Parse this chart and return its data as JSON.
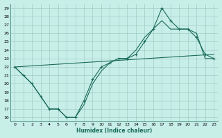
{
  "xlabel": "Humidex (Indice chaleur)",
  "bg_color": "#c8eee8",
  "grid_color": "#a0ccc4",
  "line_color": "#1a6b5a",
  "xlim": [
    -0.5,
    23.5
  ],
  "ylim": [
    15.5,
    29.5
  ],
  "xticks": [
    0,
    1,
    2,
    3,
    4,
    5,
    6,
    7,
    8,
    9,
    10,
    11,
    12,
    13,
    14,
    15,
    16,
    17,
    18,
    19,
    20,
    21,
    22,
    23
  ],
  "yticks": [
    16,
    17,
    18,
    19,
    20,
    21,
    22,
    23,
    24,
    25,
    26,
    27,
    28,
    29
  ],
  "line1_x": [
    0,
    1,
    2,
    3,
    4,
    5,
    6,
    7,
    8,
    9,
    10,
    11,
    12,
    13,
    14,
    15,
    16,
    17,
    18,
    19,
    20,
    21,
    22,
    23
  ],
  "line1_y": [
    22,
    21,
    20,
    18.5,
    17,
    17,
    16,
    16,
    18,
    20.5,
    22,
    22.5,
    23,
    23,
    23.5,
    25,
    26.5,
    29,
    27.5,
    26.5,
    26.5,
    25.5,
    23.5,
    23
  ],
  "line2_x": [
    0,
    1,
    2,
    3,
    4,
    5,
    6,
    7,
    8,
    9,
    10,
    11,
    12,
    13,
    14,
    15,
    16,
    17,
    18,
    19,
    20,
    21,
    22,
    23
  ],
  "line2_y": [
    22,
    21,
    20,
    18.5,
    17,
    17,
    16,
    16,
    17.5,
    20,
    21.5,
    22.5,
    23,
    23,
    24,
    25.5,
    26.5,
    27.5,
    26.5,
    26.5,
    26.5,
    26,
    23,
    23
  ],
  "line3_x": [
    0,
    23
  ],
  "line3_y": [
    22,
    23.5
  ]
}
